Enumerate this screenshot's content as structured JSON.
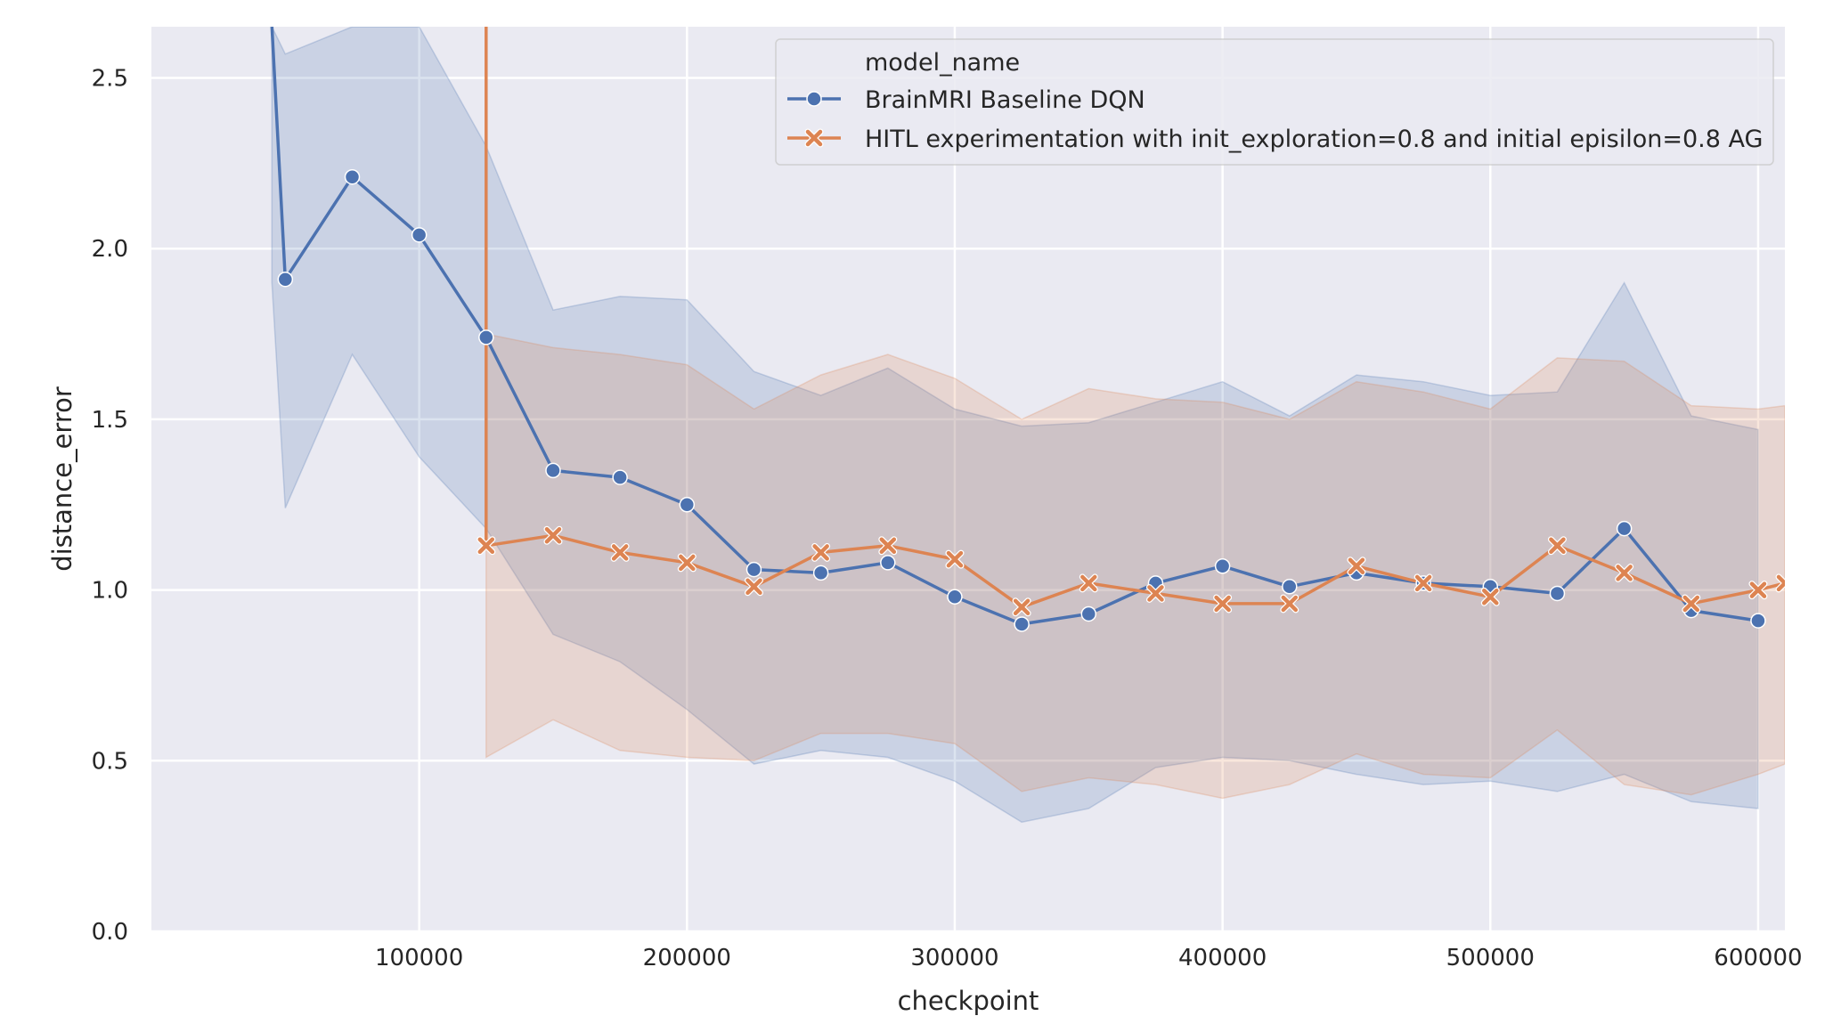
{
  "chart_data": {
    "type": "line",
    "xlabel": "checkpoint",
    "ylabel": "distance_error",
    "xlim": [
      0,
      610000
    ],
    "ylim": [
      0.0,
      2.65
    ],
    "xticks": [
      100000,
      200000,
      300000,
      400000,
      500000,
      600000
    ],
    "yticks": [
      0.0,
      0.5,
      1.0,
      1.5,
      2.0,
      2.5
    ],
    "grid": true,
    "legend": {
      "title": "model_name",
      "position": "top-right"
    },
    "series": [
      {
        "name": "BrainMRI Baseline DQN",
        "color": "#4c72b0",
        "marker": "circle",
        "x": [
          45000,
          50000,
          75000,
          100000,
          125000,
          150000,
          175000,
          200000,
          225000,
          250000,
          275000,
          300000,
          325000,
          350000,
          375000,
          400000,
          425000,
          450000,
          475000,
          500000,
          525000,
          550000,
          575000,
          600000
        ],
        "y": [
          2.65,
          1.91,
          2.21,
          2.04,
          1.74,
          1.35,
          1.33,
          1.25,
          1.06,
          1.05,
          1.08,
          0.98,
          0.9,
          0.93,
          1.02,
          1.07,
          1.01,
          1.05,
          1.02,
          1.01,
          0.99,
          1.18,
          0.94,
          0.91
        ],
        "ci_upper": [
          2.65,
          2.57,
          2.65,
          2.65,
          2.3,
          1.82,
          1.86,
          1.85,
          1.64,
          1.57,
          1.65,
          1.53,
          1.48,
          1.49,
          1.55,
          1.61,
          1.51,
          1.63,
          1.61,
          1.57,
          1.58,
          1.9,
          1.51,
          1.47
        ],
        "ci_lower": [
          1.9,
          1.24,
          1.69,
          1.39,
          1.18,
          0.87,
          0.79,
          0.65,
          0.49,
          0.53,
          0.51,
          0.44,
          0.32,
          0.36,
          0.48,
          0.51,
          0.5,
          0.46,
          0.43,
          0.44,
          0.41,
          0.46,
          0.38,
          0.36
        ]
      },
      {
        "name": "HITL experimentation with init_exploration=0.8 and initial episilon=0.8 AG",
        "color": "#dd8452",
        "marker": "x",
        "x": [
          125000,
          125000,
          150000,
          175000,
          200000,
          225000,
          250000,
          275000,
          300000,
          325000,
          350000,
          375000,
          400000,
          425000,
          450000,
          475000,
          500000,
          525000,
          550000,
          575000,
          600000,
          610000
        ],
        "y": [
          2.65,
          1.13,
          1.16,
          1.11,
          1.08,
          1.01,
          1.11,
          1.13,
          1.09,
          0.95,
          1.02,
          0.99,
          0.96,
          0.96,
          1.07,
          1.02,
          0.98,
          1.13,
          1.05,
          0.96,
          1.0,
          1.02
        ],
        "ci_upper": [
          2.65,
          1.75,
          1.71,
          1.69,
          1.66,
          1.53,
          1.63,
          1.69,
          1.62,
          1.5,
          1.59,
          1.56,
          1.55,
          1.5,
          1.61,
          1.58,
          1.53,
          1.68,
          1.67,
          1.54,
          1.53,
          1.54
        ],
        "ci_lower": [
          0.51,
          0.51,
          0.62,
          0.53,
          0.51,
          0.5,
          0.58,
          0.58,
          0.55,
          0.41,
          0.45,
          0.43,
          0.39,
          0.43,
          0.52,
          0.46,
          0.45,
          0.59,
          0.43,
          0.4,
          0.46,
          0.49
        ]
      }
    ]
  }
}
